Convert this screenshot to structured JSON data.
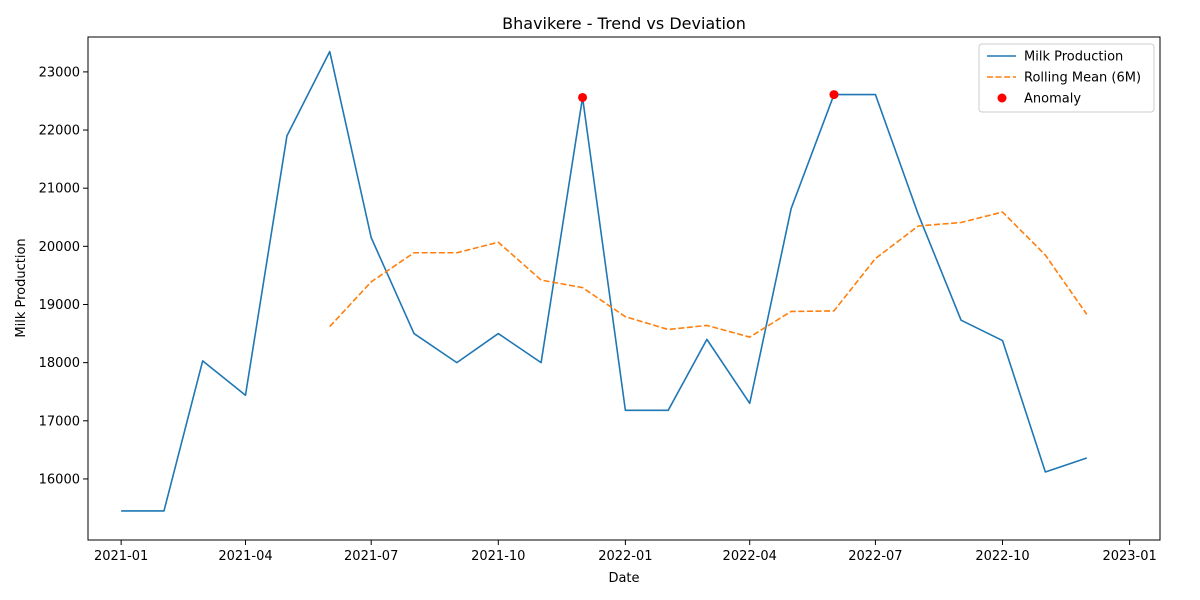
{
  "chart_data": {
    "type": "line",
    "title": "Bhavikere - Trend vs Deviation",
    "xlabel": "Date",
    "ylabel": "Milk Production",
    "x_axis": "date",
    "xlim": [
      "2020-12-08",
      "2023-01-23"
    ],
    "ylim": [
      14950,
      23600
    ],
    "x_ticks": [
      {
        "date": "2021-01-01",
        "label": "2021-01"
      },
      {
        "date": "2021-04-01",
        "label": "2021-04"
      },
      {
        "date": "2021-07-01",
        "label": "2021-07"
      },
      {
        "date": "2021-10-01",
        "label": "2021-10"
      },
      {
        "date": "2022-01-01",
        "label": "2022-01"
      },
      {
        "date": "2022-04-01",
        "label": "2022-04"
      },
      {
        "date": "2022-07-01",
        "label": "2022-07"
      },
      {
        "date": "2022-10-01",
        "label": "2022-10"
      },
      {
        "date": "2023-01-01",
        "label": "2023-01"
      }
    ],
    "y_ticks": [
      16000,
      17000,
      18000,
      19000,
      20000,
      21000,
      22000,
      23000
    ],
    "grid": false,
    "legend_position": "top-right",
    "series": [
      {
        "name": "Milk Production",
        "style": "solid",
        "color": "#1f77b4",
        "points": [
          {
            "x": "2021-01-01",
            "y": 15450
          },
          {
            "x": "2021-02-01",
            "y": 15450
          },
          {
            "x": "2021-03-01",
            "y": 18030
          },
          {
            "x": "2021-04-01",
            "y": 17440
          },
          {
            "x": "2021-05-01",
            "y": 21900
          },
          {
            "x": "2021-06-01",
            "y": 23350
          },
          {
            "x": "2021-07-01",
            "y": 20150
          },
          {
            "x": "2021-08-01",
            "y": 18500
          },
          {
            "x": "2021-09-01",
            "y": 18000
          },
          {
            "x": "2021-10-01",
            "y": 18500
          },
          {
            "x": "2021-11-01",
            "y": 18000
          },
          {
            "x": "2021-12-01",
            "y": 22560
          },
          {
            "x": "2022-01-01",
            "y": 17180
          },
          {
            "x": "2022-02-01",
            "y": 17180
          },
          {
            "x": "2022-03-01",
            "y": 18400
          },
          {
            "x": "2022-04-01",
            "y": 17300
          },
          {
            "x": "2022-05-01",
            "y": 20650
          },
          {
            "x": "2022-06-01",
            "y": 22610
          },
          {
            "x": "2022-07-01",
            "y": 22610
          },
          {
            "x": "2022-08-01",
            "y": 20550
          },
          {
            "x": "2022-09-01",
            "y": 18730
          },
          {
            "x": "2022-10-01",
            "y": 18380
          },
          {
            "x": "2022-11-01",
            "y": 16120
          },
          {
            "x": "2022-12-01",
            "y": 16360
          }
        ]
      },
      {
        "name": "Rolling Mean (6M)",
        "style": "dashed",
        "color": "#ff7f0e",
        "points": [
          {
            "x": "2021-06-01",
            "y": 18620
          },
          {
            "x": "2021-07-01",
            "y": 19390
          },
          {
            "x": "2021-08-01",
            "y": 19890
          },
          {
            "x": "2021-09-01",
            "y": 19890
          },
          {
            "x": "2021-10-01",
            "y": 20070
          },
          {
            "x": "2021-11-01",
            "y": 19420
          },
          {
            "x": "2021-12-01",
            "y": 19290
          },
          {
            "x": "2022-01-01",
            "y": 18790
          },
          {
            "x": "2022-02-01",
            "y": 18570
          },
          {
            "x": "2022-03-01",
            "y": 18640
          },
          {
            "x": "2022-04-01",
            "y": 18440
          },
          {
            "x": "2022-05-01",
            "y": 18880
          },
          {
            "x": "2022-06-01",
            "y": 18890
          },
          {
            "x": "2022-07-01",
            "y": 19790
          },
          {
            "x": "2022-08-01",
            "y": 20350
          },
          {
            "x": "2022-09-01",
            "y": 20410
          },
          {
            "x": "2022-10-01",
            "y": 20590
          },
          {
            "x": "2022-11-01",
            "y": 19850
          },
          {
            "x": "2022-12-01",
            "y": 18830
          }
        ]
      },
      {
        "name": "Anomaly",
        "style": "scatter",
        "color": "#ff0000",
        "points": [
          {
            "x": "2021-12-01",
            "y": 22560
          },
          {
            "x": "2022-06-01",
            "y": 22610
          }
        ]
      }
    ]
  }
}
